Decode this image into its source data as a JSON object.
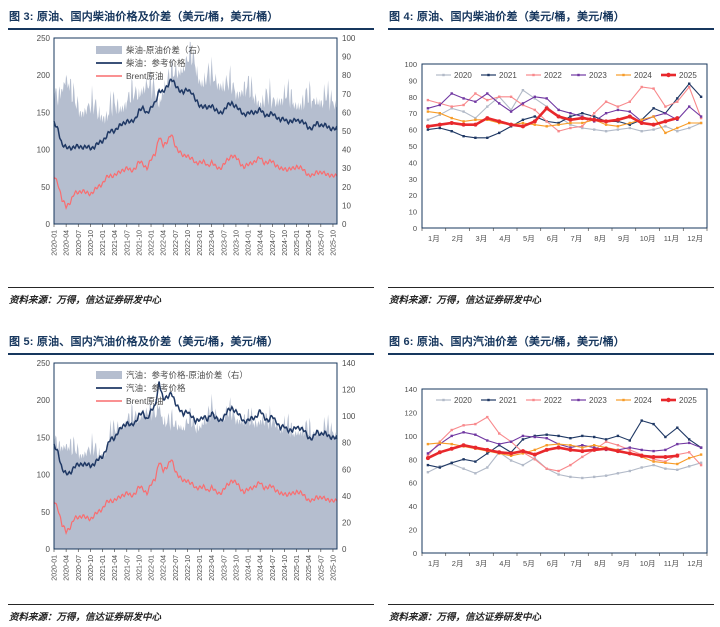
{
  "source_label": "资料来源：万得，信达证券研发中心",
  "colors": {
    "navy": "#1f3864",
    "brent": "#f96d6f",
    "area": "#b5becf",
    "plot_border": "#17375e",
    "axis_label": "#4d4d4d",
    "title": "#17375e",
    "years": {
      "2020": "#b2bac8",
      "2021": "#1f3864",
      "2022": "#f8898c",
      "2023": "#7138a2",
      "2024": "#f79c28",
      "2025": "#e8282c"
    }
  },
  "chart_data": [
    {
      "figure": "图 3",
      "type": "area",
      "title": "图 3: 原油、国内柴油价格及价差（美元/桶，美元/桶）",
      "left_ylim": [
        0,
        250
      ],
      "left_step": 50,
      "right_ylim": [
        0,
        100
      ],
      "right_step": 10,
      "grid": false,
      "legend_position": "top-left-inside",
      "spike": 13,
      "jitter": 2.2,
      "points_per_tick": 3,
      "x_ticks": [
        "2020-01",
        "2020-04",
        "2020-07",
        "2020-10",
        "2021-01",
        "2021-04",
        "2021-07",
        "2021-10",
        "2022-01",
        "2022-04",
        "2022-07",
        "2022-10",
        "2023-01",
        "2023-04",
        "2023-07",
        "2023-10",
        "2024-01",
        "2024-04",
        "2024-07",
        "2024-10",
        "2025-01",
        "2025-04",
        "2025-07",
        "2025-10"
      ],
      "legend": [
        "柴油-原油价差（右）",
        "柴油：参考价格",
        "Brent原油"
      ],
      "series": [
        {
          "name": "柴油-原油价差（右）",
          "style": "area",
          "axis": "right",
          "color": "area",
          "values": [
            62,
            66,
            72,
            78,
            70,
            62,
            60,
            59,
            61,
            60,
            59,
            58,
            57,
            56,
            59,
            60,
            61,
            62,
            64,
            65,
            66,
            69,
            72,
            73,
            69,
            68,
            64,
            71,
            74,
            75,
            79,
            81,
            83,
            85,
            86,
            83,
            76,
            75,
            76,
            76,
            75,
            74,
            73,
            72,
            70,
            69,
            70,
            71,
            69,
            67,
            66,
            64,
            65,
            64,
            63,
            65,
            66,
            66,
            65,
            63,
            63,
            63,
            64,
            64,
            64,
            66,
            64,
            65,
            63,
            64,
            63
          ]
        },
        {
          "name": "柴油：参考价格",
          "style": "line",
          "axis": "left",
          "color": "navy",
          "values": [
            135,
            127,
            107,
            102,
            103,
            103,
            104,
            104,
            103,
            102,
            104,
            108,
            112,
            118,
            125,
            126,
            130,
            135,
            139,
            136,
            141,
            152,
            155,
            150,
            155,
            163,
            180,
            176,
            186,
            195,
            186,
            181,
            176,
            181,
            178,
            166,
            160,
            158,
            155,
            161,
            152,
            149,
            153,
            159,
            163,
            158,
            152,
            148,
            148,
            150,
            151,
            153,
            148,
            146,
            148,
            145,
            139,
            141,
            138,
            137,
            141,
            138,
            135,
            130,
            128,
            136,
            133,
            132,
            130,
            128,
            127
          ]
        },
        {
          "name": "Brent原油",
          "style": "line",
          "axis": "left",
          "color": "brent",
          "values": [
            64,
            55,
            32,
            23,
            30,
            40,
            43,
            45,
            41,
            41,
            45,
            50,
            55,
            62,
            65,
            66,
            68,
            73,
            75,
            71,
            75,
            83,
            81,
            75,
            86,
            95,
            117,
            105,
            112,
            120,
            105,
            98,
            90,
            93,
            88,
            81,
            84,
            83,
            78,
            84,
            76,
            75,
            80,
            86,
            93,
            89,
            82,
            77,
            79,
            83,
            85,
            89,
            83,
            82,
            85,
            79,
            73,
            75,
            73,
            74,
            78,
            75,
            71,
            66,
            64,
            71,
            69,
            67,
            67,
            64,
            64
          ]
        }
      ]
    },
    {
      "figure": "图 4",
      "type": "line",
      "title": "图 4: 原油、国内柴油价差（美元/桶，美元/桶）",
      "ylim": [
        0,
        100
      ],
      "ystep": 10,
      "grid": false,
      "legend_position": "top-inside-row",
      "x_labels": [
        "1月",
        "2月",
        "3月",
        "4月",
        "5月",
        "6月",
        "7月",
        "8月",
        "9月",
        "10月",
        "11月",
        "12月"
      ],
      "series": [
        {
          "name": "2020",
          "values": [
            66,
            69,
            73,
            71,
            67,
            74,
            80,
            72,
            84,
            79,
            74,
            68,
            63,
            61,
            60,
            59,
            60,
            61,
            59,
            60,
            62,
            59,
            61,
            64
          ]
        },
        {
          "name": "2021",
          "values": [
            60,
            61,
            59,
            56,
            55,
            55,
            58,
            62,
            66,
            68,
            65,
            64,
            68,
            70,
            68,
            65,
            65,
            63,
            66,
            73,
            70,
            79,
            88,
            80
          ]
        },
        {
          "name": "2022",
          "values": [
            78,
            76,
            74,
            75,
            82,
            78,
            80,
            80,
            75,
            72,
            65,
            59,
            61,
            62,
            70,
            77,
            74,
            77,
            86,
            85,
            74,
            77,
            86,
            67
          ]
        },
        {
          "name": "2023",
          "values": [
            73,
            75,
            82,
            79,
            77,
            82,
            76,
            71,
            76,
            80,
            79,
            72,
            70,
            68,
            65,
            70,
            72,
            71,
            65,
            68,
            70,
            66,
            74,
            68
          ]
        },
        {
          "name": "2024",
          "values": [
            71,
            70,
            67,
            65,
            66,
            66,
            64,
            63,
            64,
            63,
            62,
            63,
            64,
            64,
            66,
            63,
            62,
            64,
            66,
            68,
            58,
            61,
            64,
            64
          ]
        },
        {
          "name": "2025",
          "values": [
            62,
            63,
            64,
            63,
            63,
            67,
            65,
            63,
            62,
            65,
            73,
            68,
            66,
            67,
            66,
            65,
            66,
            68,
            64,
            63,
            65,
            67
          ]
        }
      ]
    },
    {
      "figure": "图 5",
      "type": "area",
      "title": "图 5: 原油、国内汽油价格及价差（美元/桶，美元/桶）",
      "left_ylim": [
        0,
        250
      ],
      "left_step": 50,
      "right_ylim": [
        0,
        140
      ],
      "right_step": 20,
      "grid": false,
      "legend_position": "top-left-inside",
      "spike": 15,
      "jitter": 2.2,
      "points_per_tick": 3,
      "x_ticks": [
        "2020-01",
        "2020-04",
        "2020-07",
        "2020-10",
        "2021-01",
        "2021-04",
        "2021-07",
        "2021-10",
        "2022-01",
        "2022-04",
        "2022-07",
        "2022-10",
        "2023-01",
        "2023-04",
        "2023-07",
        "2023-10",
        "2024-01",
        "2024-04",
        "2024-07",
        "2024-10",
        "2025-01",
        "2025-04",
        "2025-07",
        "2025-10"
      ],
      "legend": [
        "汽油：参考价格-原油价差（右）",
        "汽油：参考价格",
        "Brent原油"
      ],
      "series": [
        {
          "name": "汽油：参考价格-原油价差（右）",
          "style": "area",
          "axis": "right",
          "color": "area",
          "values": [
            74,
            75,
            76,
            77,
            73,
            70,
            70,
            70,
            72,
            71,
            70,
            70,
            70,
            73,
            83,
            84,
            90,
            92,
            95,
            94,
            95,
            97,
            101,
            100,
            99,
            97,
            108,
            95,
            93,
            90,
            90,
            92,
            90,
            92,
            92,
            89,
            91,
            95,
            94,
            101,
            99,
            97,
            98,
            99,
            97,
            96,
            96,
            95,
            93,
            93,
            93,
            96,
            95,
            90,
            93,
            93,
            89,
            90,
            87,
            84,
            87,
            87,
            87,
            84,
            84,
            87,
            86,
            88,
            85,
            86,
            84
          ]
        },
        {
          "name": "汽油：参考价格",
          "style": "line",
          "axis": "left",
          "color": "navy",
          "values": [
            138,
            130,
            108,
            100,
            103,
            110,
            113,
            115,
            113,
            112,
            115,
            120,
            125,
            135,
            148,
            150,
            158,
            165,
            170,
            165,
            170,
            180,
            182,
            175,
            185,
            192,
            225,
            200,
            205,
            210,
            195,
            190,
            180,
            185,
            180,
            170,
            175,
            178,
            172,
            185,
            175,
            172,
            178,
            185,
            190,
            185,
            178,
            172,
            172,
            176,
            178,
            185,
            178,
            172,
            178,
            172,
            162,
            165,
            160,
            158,
            165,
            162,
            158,
            150,
            148,
            158,
            155,
            155,
            152,
            150,
            148
          ]
        },
        {
          "name": "Brent原油",
          "style": "line",
          "axis": "left",
          "color": "brent",
          "values": [
            64,
            55,
            32,
            23,
            30,
            40,
            43,
            45,
            41,
            41,
            45,
            50,
            55,
            62,
            65,
            66,
            68,
            73,
            75,
            71,
            75,
            83,
            81,
            75,
            86,
            95,
            117,
            105,
            112,
            120,
            105,
            98,
            90,
            93,
            88,
            81,
            84,
            83,
            78,
            84,
            76,
            75,
            80,
            86,
            93,
            89,
            82,
            77,
            79,
            83,
            85,
            89,
            83,
            82,
            85,
            79,
            73,
            75,
            73,
            74,
            78,
            75,
            71,
            66,
            64,
            71,
            69,
            67,
            67,
            64,
            64
          ]
        }
      ]
    },
    {
      "figure": "图 6",
      "type": "line",
      "title": "图 6: 原油、国内汽油价差（美元/桶，美元/桶）",
      "ylim": [
        0,
        140
      ],
      "ystep": 20,
      "grid": false,
      "legend_position": "top-inside-row",
      "x_labels": [
        "1月",
        "2月",
        "3月",
        "4月",
        "5月",
        "6月",
        "7月",
        "8月",
        "9月",
        "10月",
        "11月",
        "12月"
      ],
      "series": [
        {
          "name": "2020",
          "values": [
            69,
            74,
            76,
            72,
            68,
            73,
            86,
            79,
            75,
            81,
            72,
            67,
            65,
            64,
            65,
            66,
            68,
            70,
            73,
            75,
            72,
            71,
            74,
            77
          ]
        },
        {
          "name": "2021",
          "values": [
            75,
            73,
            77,
            80,
            78,
            85,
            92,
            86,
            97,
            100,
            101,
            100,
            98,
            100,
            99,
            97,
            100,
            96,
            113,
            110,
            99,
            107,
            97,
            90
          ]
        },
        {
          "name": "2022",
          "values": [
            83,
            95,
            105,
            109,
            110,
            116,
            102,
            95,
            86,
            80,
            72,
            70,
            75,
            82,
            88,
            95,
            92,
            88,
            84,
            80,
            78,
            84,
            86,
            75
          ]
        },
        {
          "name": "2023",
          "values": [
            85,
            93,
            100,
            103,
            101,
            96,
            93,
            95,
            100,
            99,
            98,
            93,
            90,
            92,
            90,
            88,
            88,
            90,
            88,
            87,
            88,
            93,
            94,
            90
          ]
        },
        {
          "name": "2024",
          "values": [
            93,
            94,
            93,
            91,
            89,
            87,
            85,
            83,
            85,
            88,
            92,
            93,
            92,
            90,
            92,
            90,
            88,
            85,
            82,
            78,
            77,
            76,
            81,
            84
          ]
        },
        {
          "name": "2025",
          "values": [
            81,
            86,
            89,
            92,
            90,
            88,
            86,
            85,
            87,
            84,
            88,
            90,
            88,
            87,
            88,
            89,
            87,
            85,
            83,
            82,
            82,
            83
          ]
        }
      ]
    }
  ]
}
